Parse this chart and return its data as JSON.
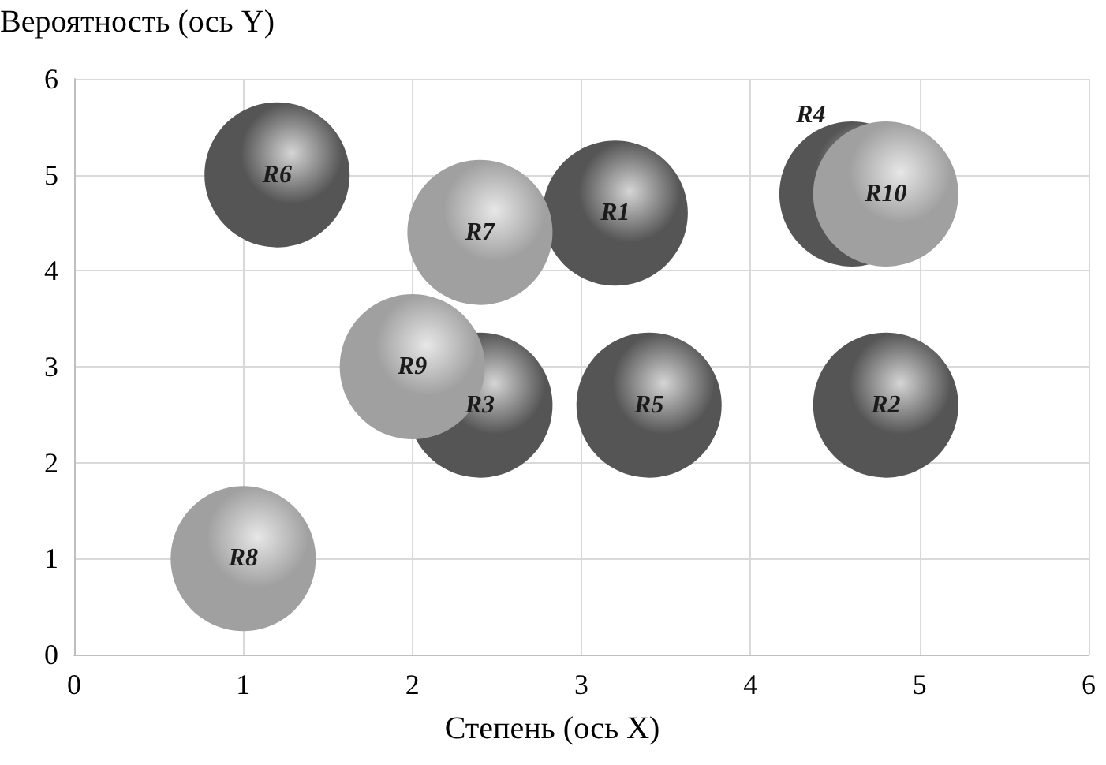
{
  "chart_data": {
    "type": "bubble",
    "xlabel": "Степень (ось X)",
    "ylabel": "Вероятность (ось Y)",
    "xlim": [
      0,
      6
    ],
    "xticks": [
      0,
      1,
      2,
      3,
      4,
      5,
      6
    ],
    "ylim": [
      0,
      6
    ],
    "yticks": [
      0,
      1,
      2,
      3,
      4,
      5,
      6
    ],
    "grid": true,
    "series": [
      {
        "color": "#555555",
        "x": [
          1.2,
          3.2,
          4.6,
          2.4,
          3.4,
          4.8
        ],
        "values": [
          5.0,
          4.6,
          4.8,
          2.6,
          2.6,
          2.6
        ],
        "sizes": [
          1,
          1,
          1,
          1,
          1,
          1
        ]
      },
      {
        "color": "#a0a0a0",
        "x": [
          2.4,
          4.8,
          2.0,
          1.0
        ],
        "values": [
          4.4,
          4.8,
          3.0,
          1.0
        ],
        "sizes": [
          1,
          1,
          1,
          1
        ]
      }
    ],
    "annotations": [
      {
        "text": "R6",
        "x": 1.2,
        "y": 5.0
      },
      {
        "text": "R1",
        "x": 3.2,
        "y": 4.6
      },
      {
        "text": "R4",
        "x": 4.6,
        "y": 4.8
      },
      {
        "text": "R3",
        "x": 2.4,
        "y": 2.6
      },
      {
        "text": "R5",
        "x": 3.4,
        "y": 2.6
      },
      {
        "text": "R2",
        "x": 4.8,
        "y": 2.6
      },
      {
        "text": "R7",
        "x": 2.4,
        "y": 4.4
      },
      {
        "text": "R10",
        "x": 4.8,
        "y": 4.8
      },
      {
        "text": "R9",
        "x": 2.0,
        "y": 3.0
      },
      {
        "text": "R8",
        "x": 1.0,
        "y": 1.0
      }
    ]
  }
}
